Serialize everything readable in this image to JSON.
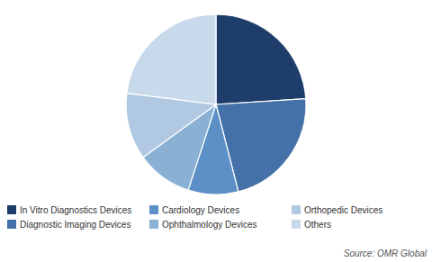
{
  "chart_data": {
    "type": "pie",
    "categories": [
      "In Vitro Diagnostics Devices",
      "Diagnostic Imaging Devices",
      "Cardiology Devices",
      "Ophthalmology Devices",
      "Orthopedic Devices",
      "Others"
    ],
    "values": [
      24,
      22,
      9,
      10,
      12,
      23
    ],
    "colors": [
      "#1e3d6b",
      "#4472a8",
      "#5b8fc5",
      "#8ab0d4",
      "#b0c8e2",
      "#c8d9ec"
    ],
    "annotations": [
      "Source: OMR Global"
    ],
    "legend": "bottom"
  }
}
